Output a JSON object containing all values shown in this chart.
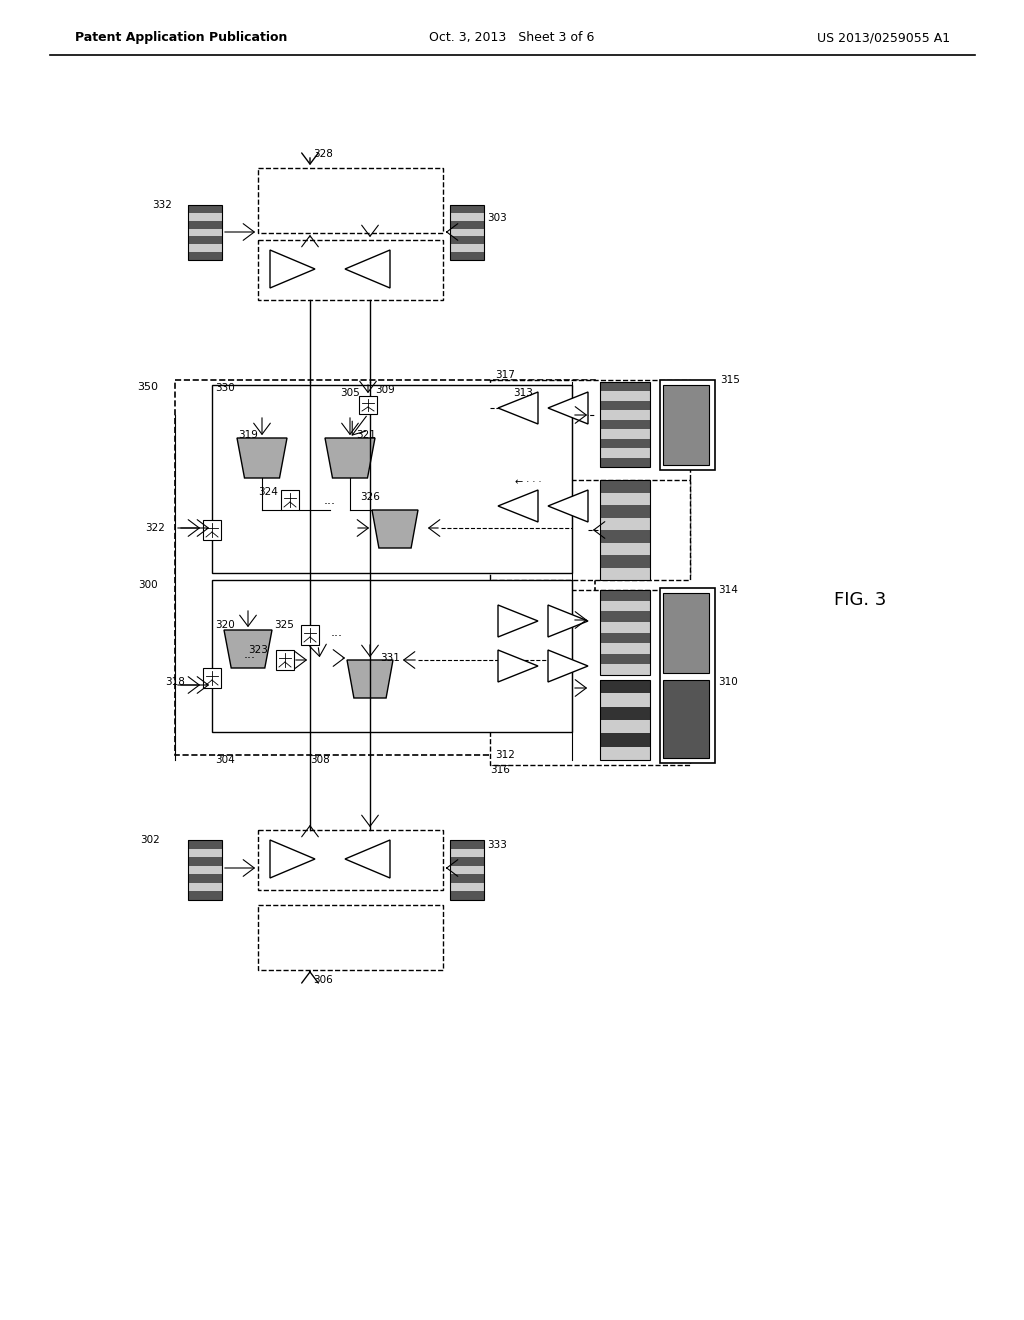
{
  "bg": "#ffffff",
  "header_left": "Patent Application Publication",
  "header_mid": "Oct. 3, 2013   Sheet 3 of 6",
  "header_right": "US 2013/0259055 A1",
  "fig_label": "FIG. 3"
}
